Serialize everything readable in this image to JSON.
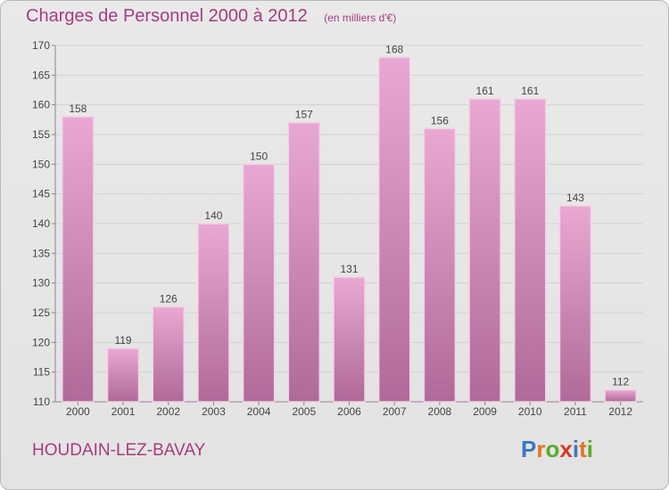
{
  "header": {
    "title": "Charges de Personnel 2000 à 2012",
    "subtitle": "(en milliers d'€)"
  },
  "footer": {
    "town": "HOUDAIN-LEZ-BAVAY",
    "logo": {
      "text": "Proxiti",
      "letter_colors": [
        "#3b78c4",
        "#e0761f",
        "#5bab2a",
        "#d6372b",
        "#3b78c4",
        "#e0761f",
        "#5bab2a"
      ]
    }
  },
  "colors": {
    "accent": "#a53c7f",
    "bar_top": "#e9a8d2",
    "bar_bottom": "#b06a99",
    "bar_edge": "#f3d2e7",
    "grid": "#d2d2d2",
    "axis_text": "#444444"
  },
  "chart_data": {
    "type": "bar",
    "categories": [
      "2000",
      "2001",
      "2002",
      "2003",
      "2004",
      "2005",
      "2006",
      "2007",
      "2008",
      "2009",
      "2010",
      "2011",
      "2012"
    ],
    "values": [
      158,
      119,
      126,
      140,
      150,
      157,
      131,
      168,
      156,
      161,
      161,
      143,
      112
    ],
    "data_labels": [
      "158",
      "119",
      "126",
      "140",
      "150",
      "157",
      "131",
      "168",
      "156",
      "161",
      "161",
      "143",
      "112"
    ],
    "ylim": [
      110,
      170
    ],
    "yticks": [
      110,
      115,
      120,
      125,
      130,
      135,
      140,
      145,
      150,
      155,
      160,
      165,
      170
    ],
    "grid": true,
    "xlabel": "",
    "ylabel": ""
  }
}
